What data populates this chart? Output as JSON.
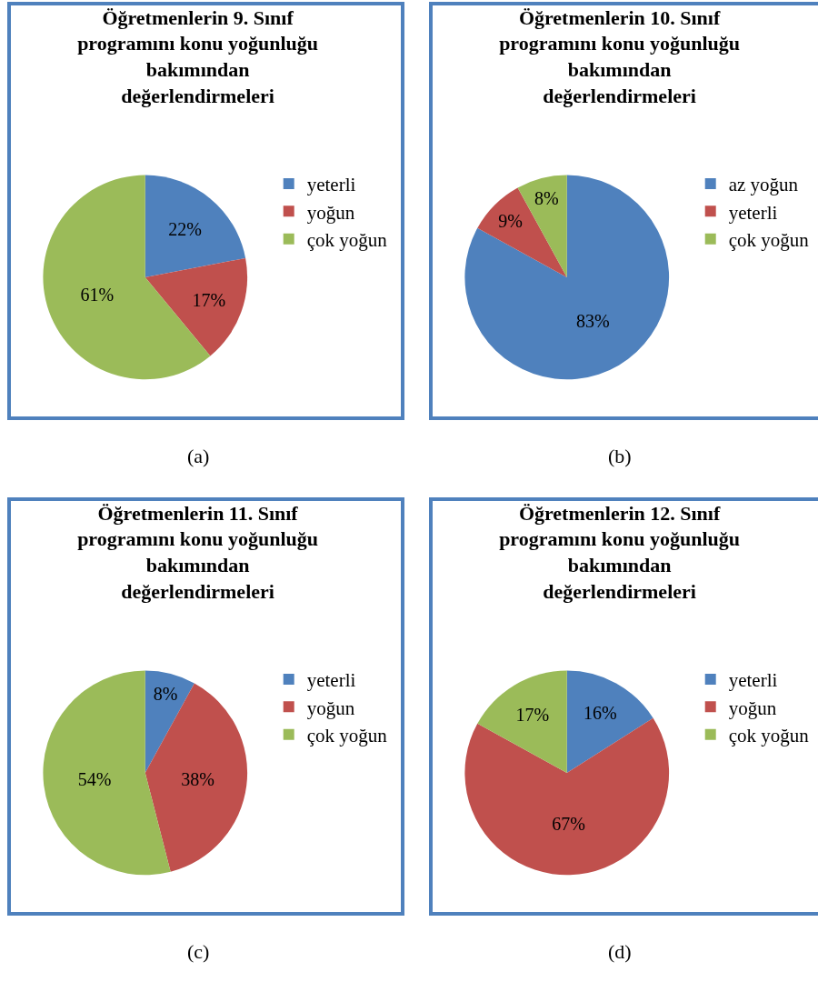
{
  "chart_data": [
    {
      "type": "pie",
      "title": "Öğretmenlerin 9. Sınıf programını konu yoğunluğu bakımından değerlendirmeleri",
      "categories": [
        "yeterli",
        "yoğun",
        "çok yoğun"
      ],
      "values": [
        22,
        17,
        61
      ],
      "value_labels": [
        "22%",
        "17%",
        "61%"
      ],
      "colors": [
        "#4f81bd",
        "#c0504d",
        "#9bbb59"
      ],
      "legend": "right",
      "annotations": [
        "(a)"
      ]
    },
    {
      "type": "pie",
      "title": "Öğretmenlerin 10. Sınıf programını konu yoğunluğu bakımından değerlendirmeleri",
      "categories": [
        "az yoğun",
        "yeterli",
        "çok yoğun"
      ],
      "values": [
        83,
        9,
        8
      ],
      "value_labels": [
        "83%",
        "9%",
        "8%"
      ],
      "colors": [
        "#4f81bd",
        "#c0504d",
        "#9bbb59"
      ],
      "legend": "right",
      "annotations": [
        "(b)"
      ]
    },
    {
      "type": "pie",
      "title": "Öğretmenlerin 11. Sınıf programını konu yoğunluğu bakımından değerlendirmeleri",
      "categories": [
        "yeterli",
        "yoğun",
        "çok yoğun"
      ],
      "values": [
        8,
        38,
        54
      ],
      "value_labels": [
        "8%",
        "38%",
        "54%"
      ],
      "colors": [
        "#4f81bd",
        "#c0504d",
        "#9bbb59"
      ],
      "legend": "right",
      "annotations": [
        "(c)"
      ]
    },
    {
      "type": "pie",
      "title": "Öğretmenlerin 12. Sınıf programını konu yoğunluğu bakımından değerlendirmeleri",
      "categories": [
        "yeterli",
        "yoğun",
        "çok yoğun"
      ],
      "values": [
        16,
        67,
        17
      ],
      "value_labels": [
        "16%",
        "67%",
        "17%"
      ],
      "colors": [
        "#4f81bd",
        "#c0504d",
        "#9bbb59"
      ],
      "legend": "right",
      "annotations": [
        "(d)"
      ]
    }
  ]
}
